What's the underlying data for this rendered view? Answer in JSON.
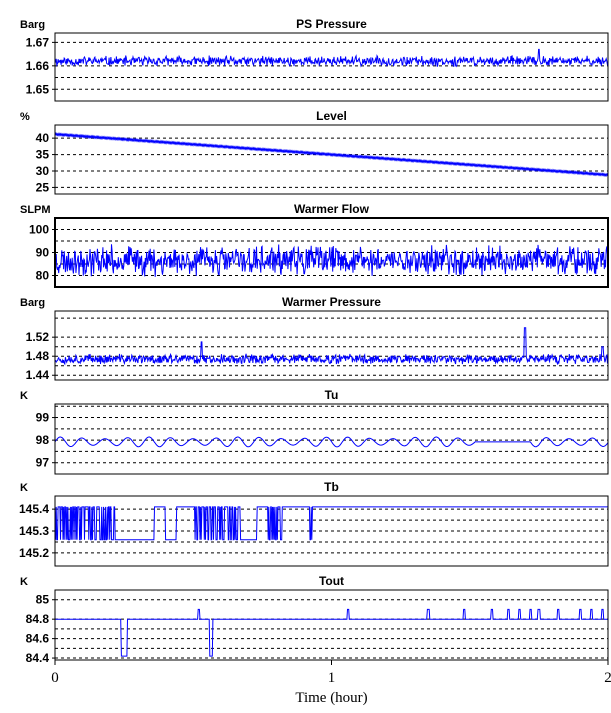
{
  "chart_data": {
    "type": "line",
    "xlabel": "Time (hour)",
    "xlim": [
      0,
      2
    ],
    "xticks": [
      "0",
      "1",
      "2"
    ],
    "series_color": "#0000ff",
    "grid": "horizontal dashed",
    "panels": [
      {
        "title": "PS Pressure",
        "unit": "Barg",
        "ylim": [
          1.645,
          1.674
        ],
        "yticks": [
          "1.67",
          "1.66",
          "1.65"
        ],
        "ytick_values": [
          1.67,
          1.66,
          1.65
        ],
        "gridlines": [
          1.67,
          1.66,
          1.655,
          1.65
        ],
        "data": {
          "kind": "noise",
          "base": 1.662,
          "amp": 0.0025,
          "spikes": [
            [
              1.75,
              1.667
            ]
          ],
          "seed": 11
        }
      },
      {
        "title": "Level",
        "unit": "%",
        "ylim": [
          23,
          44
        ],
        "yticks": [
          "40",
          "35",
          "30",
          "25"
        ],
        "ytick_values": [
          40,
          35,
          30,
          25
        ],
        "gridlines": [
          40,
          35,
          30,
          25
        ],
        "data": {
          "kind": "linear",
          "start": 41.2,
          "end": 28.8
        }
      },
      {
        "title": "Warmer Flow",
        "unit": "SLPM",
        "ylim": [
          75,
          105
        ],
        "yticks": [
          "100",
          "90",
          "80"
        ],
        "ytick_values": [
          100,
          90,
          80
        ],
        "gridlines": [
          100,
          95,
          90,
          85,
          80
        ],
        "data": {
          "kind": "noise",
          "base": 86.5,
          "amp": 7.5,
          "seed": 23
        }
      },
      {
        "title": "Warmer Pressure",
        "unit": "Barg",
        "ylim": [
          1.43,
          1.575
        ],
        "yticks": [
          "1.52",
          "1.48",
          "1.44"
        ],
        "ytick_values": [
          1.52,
          1.48,
          1.44
        ],
        "gridlines": [
          1.56,
          1.52,
          1.5,
          1.48,
          1.46,
          1.44
        ],
        "data": {
          "kind": "noise",
          "base": 1.474,
          "amp": 0.012,
          "spikes": [
            [
              1.7,
              1.54
            ],
            [
              0.53,
              1.51
            ],
            [
              1.98,
              1.5
            ]
          ],
          "seed": 37
        }
      },
      {
        "title": "Tu",
        "unit": "K",
        "ylim": [
          96.5,
          99.6
        ],
        "yticks": [
          "99",
          "98",
          "97"
        ],
        "ytick_values": [
          99,
          98,
          97
        ],
        "gridlines": [
          99.5,
          99,
          98.5,
          98,
          97.5,
          97
        ],
        "data": {
          "kind": "wave",
          "base": 97.92,
          "amp": 0.18,
          "period": 0.08
        }
      },
      {
        "title": "Tb",
        "unit": "K",
        "ylim": [
          145.14,
          145.46
        ],
        "yticks": [
          "145.4",
          "145.3",
          "145.2"
        ],
        "ytick_values": [
          145.4,
          145.3,
          145.2
        ],
        "gridlines": [
          145.4,
          145.35,
          145.3,
          145.25,
          145.2
        ],
        "data": {
          "kind": "steps",
          "base": 145.41,
          "low": 145.26,
          "dense_ranges": [
            [
              0,
              0.22
            ],
            [
              0.5,
              0.73
            ],
            [
              0.77,
              0.83
            ],
            [
              0.92,
              0.93
            ]
          ],
          "low_ranges": [
            [
              0.22,
              0.36
            ],
            [
              0.4,
              0.44
            ],
            [
              0.67,
              0.73
            ]
          ]
        }
      },
      {
        "title": "Tout",
        "unit": "K",
        "ylim": [
          84.38,
          85.1
        ],
        "yticks": [
          "85",
          "84.8",
          "84.6",
          "84.4"
        ],
        "ytick_values": [
          85,
          84.8,
          84.6,
          84.4
        ],
        "gridlines": [
          85,
          84.8,
          84.7,
          84.6,
          84.5,
          84.4
        ],
        "data": {
          "kind": "blips",
          "base": 84.8,
          "up": [
            0.52,
            1.06,
            1.35,
            1.48,
            1.58,
            1.64,
            1.68,
            1.72,
            1.75,
            1.82,
            1.9,
            1.94,
            1.98
          ],
          "down": [
            [
              0.24,
              0.26
            ],
            [
              0.56,
              0.57
            ]
          ]
        }
      }
    ]
  }
}
